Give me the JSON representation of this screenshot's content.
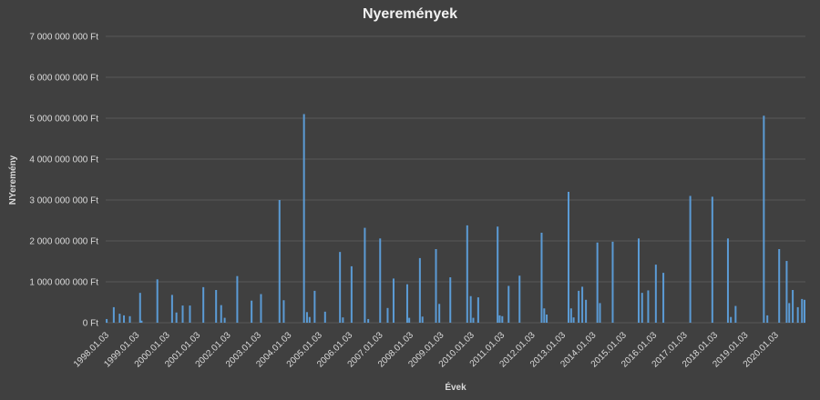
{
  "chart_data": {
    "type": "bar",
    "title": "Nyeremények",
    "xlabel": "Évek",
    "ylabel": "NYeremény",
    "ylim": [
      0,
      7000000000
    ],
    "grid": true,
    "legend": "none",
    "bar_color": "#5b9bd5",
    "background": "#404040",
    "y_ticks": [
      {
        "value": 0,
        "label": "0 Ft"
      },
      {
        "value": 1000000000,
        "label": "1 000 000 000 Ft"
      },
      {
        "value": 2000000000,
        "label": "2 000 000 000 Ft"
      },
      {
        "value": 3000000000,
        "label": "3 000 000 000 Ft"
      },
      {
        "value": 4000000000,
        "label": "4 000 000 000 Ft"
      },
      {
        "value": 5000000000,
        "label": "5 000 000 000 Ft"
      },
      {
        "value": 6000000000,
        "label": "6 000 000 000 Ft"
      },
      {
        "value": 7000000000,
        "label": "7 000 000 000 Ft"
      }
    ],
    "x_range": [
      "1998-01-03",
      "2020-12-31"
    ],
    "x_ticks": [
      {
        "date": "1998-01-03",
        "label": "1998.01.03"
      },
      {
        "date": "1999-01-03",
        "label": "1999.01.03"
      },
      {
        "date": "2000-01-03",
        "label": "2000.01.03"
      },
      {
        "date": "2001-01-03",
        "label": "2001.01.03"
      },
      {
        "date": "2002-01-03",
        "label": "2002.01.03"
      },
      {
        "date": "2003-01-03",
        "label": "2003.01.03"
      },
      {
        "date": "2004-01-03",
        "label": "2004.01.03"
      },
      {
        "date": "2005-01-03",
        "label": "2005.01.03"
      },
      {
        "date": "2006-01-03",
        "label": "2006.01.03"
      },
      {
        "date": "2007-01-03",
        "label": "2007.01.03"
      },
      {
        "date": "2008-01-03",
        "label": "2008.01.03"
      },
      {
        "date": "2009-01-03",
        "label": "2009.01.03"
      },
      {
        "date": "2010-01-03",
        "label": "2010.01.03"
      },
      {
        "date": "2011-01-03",
        "label": "2011.01.03"
      },
      {
        "date": "2012-01-03",
        "label": "2012.01.03"
      },
      {
        "date": "2013-01-03",
        "label": "2013.01.03"
      },
      {
        "date": "2014-01-03",
        "label": "2014.01.03"
      },
      {
        "date": "2015-01-03",
        "label": "2015.01.03"
      },
      {
        "date": "2016-01-03",
        "label": "2016.01.03"
      },
      {
        "date": "2017-01-03",
        "label": "2017.01.03"
      },
      {
        "date": "2018-01-03",
        "label": "2018.01.03"
      },
      {
        "date": "2019-01-03",
        "label": "2019.01.03"
      },
      {
        "date": "2020-01-03",
        "label": "2020.01.03"
      }
    ],
    "points": [
      {
        "date": "1998-01-15",
        "value": 90000000
      },
      {
        "date": "1998-04-10",
        "value": 380000000
      },
      {
        "date": "1998-06-20",
        "value": 220000000
      },
      {
        "date": "1998-08-10",
        "value": 180000000
      },
      {
        "date": "1998-10-20",
        "value": 160000000
      },
      {
        "date": "1999-02-20",
        "value": 730000000
      },
      {
        "date": "1999-03-10",
        "value": 50000000
      },
      {
        "date": "1999-09-15",
        "value": 1060000000
      },
      {
        "date": "2000-03-10",
        "value": 680000000
      },
      {
        "date": "2000-05-01",
        "value": 250000000
      },
      {
        "date": "2000-07-15",
        "value": 420000000
      },
      {
        "date": "2000-10-10",
        "value": 420000000
      },
      {
        "date": "2001-03-20",
        "value": 870000000
      },
      {
        "date": "2001-08-20",
        "value": 800000000
      },
      {
        "date": "2001-10-20",
        "value": 430000000
      },
      {
        "date": "2001-12-01",
        "value": 120000000
      },
      {
        "date": "2002-05-01",
        "value": 1140000000
      },
      {
        "date": "2002-10-20",
        "value": 540000000
      },
      {
        "date": "2003-02-10",
        "value": 700000000
      },
      {
        "date": "2003-09-20",
        "value": 3000000000
      },
      {
        "date": "2003-11-10",
        "value": 550000000
      },
      {
        "date": "2004-07-10",
        "value": 5100000000
      },
      {
        "date": "2004-08-15",
        "value": 260000000
      },
      {
        "date": "2004-09-15",
        "value": 140000000
      },
      {
        "date": "2004-11-15",
        "value": 780000000
      },
      {
        "date": "2005-03-20",
        "value": 270000000
      },
      {
        "date": "2005-09-15",
        "value": 1730000000
      },
      {
        "date": "2005-10-20",
        "value": 130000000
      },
      {
        "date": "2006-02-01",
        "value": 1380000000
      },
      {
        "date": "2006-07-10",
        "value": 2320000000
      },
      {
        "date": "2006-08-20",
        "value": 90000000
      },
      {
        "date": "2007-01-10",
        "value": 2060000000
      },
      {
        "date": "2007-04-10",
        "value": 360000000
      },
      {
        "date": "2007-06-20",
        "value": 1080000000
      },
      {
        "date": "2007-12-01",
        "value": 940000000
      },
      {
        "date": "2007-12-25",
        "value": 120000000
      },
      {
        "date": "2008-05-01",
        "value": 1580000000
      },
      {
        "date": "2008-06-01",
        "value": 150000000
      },
      {
        "date": "2008-11-10",
        "value": 1800000000
      },
      {
        "date": "2008-12-20",
        "value": 460000000
      },
      {
        "date": "2009-05-01",
        "value": 1110000000
      },
      {
        "date": "2009-11-20",
        "value": 2380000000
      },
      {
        "date": "2010-01-01",
        "value": 650000000
      },
      {
        "date": "2010-02-01",
        "value": 120000000
      },
      {
        "date": "2010-04-01",
        "value": 620000000
      },
      {
        "date": "2010-11-20",
        "value": 2350000000
      },
      {
        "date": "2010-12-15",
        "value": 180000000
      },
      {
        "date": "2011-01-15",
        "value": 160000000
      },
      {
        "date": "2011-04-01",
        "value": 900000000
      },
      {
        "date": "2011-08-10",
        "value": 1150000000
      },
      {
        "date": "2012-05-01",
        "value": 2200000000
      },
      {
        "date": "2012-06-01",
        "value": 350000000
      },
      {
        "date": "2012-07-01",
        "value": 200000000
      },
      {
        "date": "2013-03-20",
        "value": 3200000000
      },
      {
        "date": "2013-04-20",
        "value": 350000000
      },
      {
        "date": "2013-05-20",
        "value": 130000000
      },
      {
        "date": "2013-07-20",
        "value": 780000000
      },
      {
        "date": "2013-09-01",
        "value": 880000000
      },
      {
        "date": "2013-10-15",
        "value": 560000000
      },
      {
        "date": "2014-03-01",
        "value": 1960000000
      },
      {
        "date": "2014-04-01",
        "value": 480000000
      },
      {
        "date": "2014-09-01",
        "value": 1980000000
      },
      {
        "date": "2015-07-10",
        "value": 2060000000
      },
      {
        "date": "2015-08-20",
        "value": 730000000
      },
      {
        "date": "2015-11-01",
        "value": 790000000
      },
      {
        "date": "2016-02-01",
        "value": 1420000000
      },
      {
        "date": "2016-05-01",
        "value": 1220000000
      },
      {
        "date": "2017-03-20",
        "value": 3100000000
      },
      {
        "date": "2017-12-10",
        "value": 3080000000
      },
      {
        "date": "2018-06-15",
        "value": 2060000000
      },
      {
        "date": "2018-07-20",
        "value": 140000000
      },
      {
        "date": "2018-09-15",
        "value": 410000000
      },
      {
        "date": "2019-08-20",
        "value": 5060000000
      },
      {
        "date": "2019-10-01",
        "value": 180000000
      },
      {
        "date": "2020-02-20",
        "value": 1800000000
      },
      {
        "date": "2020-05-20",
        "value": 1510000000
      },
      {
        "date": "2020-06-20",
        "value": 480000000
      },
      {
        "date": "2020-08-01",
        "value": 800000000
      },
      {
        "date": "2020-10-01",
        "value": 380000000
      },
      {
        "date": "2020-11-20",
        "value": 580000000
      },
      {
        "date": "2020-12-20",
        "value": 560000000
      }
    ]
  }
}
